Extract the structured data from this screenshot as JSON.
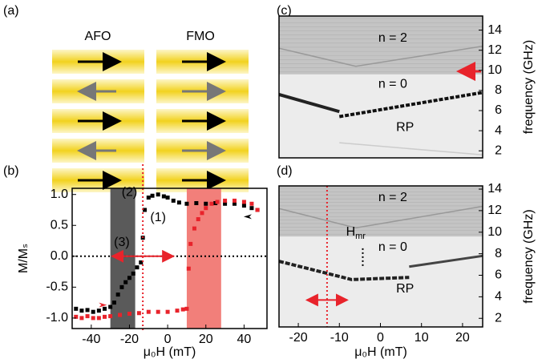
{
  "panel_labels": [
    "(a)",
    "(b)",
    "(c)",
    "(d)"
  ],
  "panel_a": {
    "columns": [
      "AFO",
      "FMO"
    ]
  },
  "chart_data": [
    {
      "type": "scatter",
      "xlabel": "μ₀H (mT)",
      "ylabel": "M/Mₛ",
      "xlim": [
        -50,
        52
      ],
      "xticks": [
        -40,
        -20,
        0,
        20,
        40
      ],
      "ylim": [
        -1.17,
        1.1
      ],
      "yticks": [
        {
          "value": -1,
          "label": "-1.0"
        },
        {
          "value": -0.5,
          "label": "-0.5"
        },
        {
          "value": 0,
          "label": "0.0"
        },
        {
          "value": 0.5,
          "label": "0.5"
        },
        {
          "value": 1,
          "label": "1.0"
        }
      ],
      "shaded": [
        {
          "from": -30,
          "to": -17,
          "color": "#5a5a5a"
        },
        {
          "from": 10,
          "to": 28,
          "color": "#f27f7a"
        }
      ],
      "vline": -13,
      "annotations": [
        "(2)",
        "(1)",
        "(3)"
      ],
      "series": [
        {
          "color": "#000000",
          "x": [
            -48,
            -45,
            -42,
            -39,
            -36,
            -33,
            -30,
            -28,
            -26,
            -24,
            -22,
            -20,
            -18,
            -16,
            -14,
            -13,
            -12,
            -10,
            -8,
            -5,
            -2,
            0,
            3,
            6,
            10,
            15,
            20,
            25,
            30,
            35,
            40,
            44,
            47
          ],
          "y": [
            -0.85,
            -0.88,
            -0.87,
            -0.9,
            -0.88,
            -0.85,
            -0.82,
            -0.75,
            -0.62,
            -0.5,
            -0.42,
            -0.35,
            -0.28,
            -0.18,
            -0.1,
            0.3,
            0.75,
            0.95,
            0.98,
            1.0,
            0.97,
            0.95,
            0.9,
            0.87,
            0.85,
            0.86,
            0.85,
            0.86,
            0.85,
            0.85,
            0.82,
            0.78,
            0.75
          ]
        },
        {
          "color": "#e8232b",
          "x": [
            -48,
            -45,
            -42,
            -39,
            -36,
            -33,
            -30,
            -25,
            -20,
            -15,
            -10,
            -5,
            0,
            5,
            8,
            10,
            11,
            12,
            14,
            16,
            18,
            20,
            23,
            26,
            30,
            35,
            40,
            44,
            47
          ],
          "y": [
            -0.98,
            -1.0,
            -0.97,
            -1.0,
            -1.0,
            -0.98,
            -0.97,
            -0.95,
            -0.93,
            -0.92,
            -0.9,
            -0.9,
            -0.9,
            -0.88,
            -0.86,
            -0.85,
            -0.2,
            0.2,
            0.45,
            0.6,
            0.7,
            0.78,
            0.85,
            0.88,
            0.9,
            0.9,
            0.88,
            0.85,
            0.75
          ]
        }
      ]
    },
    {
      "type": "heatmap",
      "ylabel": "frequency (GHz)",
      "xlim": [
        -24.7,
        24.9
      ],
      "ylim": [
        1.3,
        15.4
      ],
      "yticks": [
        2,
        4,
        6,
        8,
        10,
        12,
        14
      ],
      "annotations": [
        "n = 2",
        "n = 0",
        "RP"
      ]
    },
    {
      "type": "heatmap",
      "ylabel": "frequency (GHz)",
      "xlabel": "μ₀H (mT)",
      "xlim": [
        -24.7,
        24.9
      ],
      "xticks": [
        -20,
        -10,
        0,
        10,
        20
      ],
      "ylim": [
        1.2,
        14.3
      ],
      "yticks": [
        2,
        4,
        6,
        8,
        10,
        12,
        14
      ],
      "vline": -13,
      "annotations": [
        "n = 2",
        "n = 0",
        "RP",
        "H",
        "mr"
      ]
    }
  ]
}
